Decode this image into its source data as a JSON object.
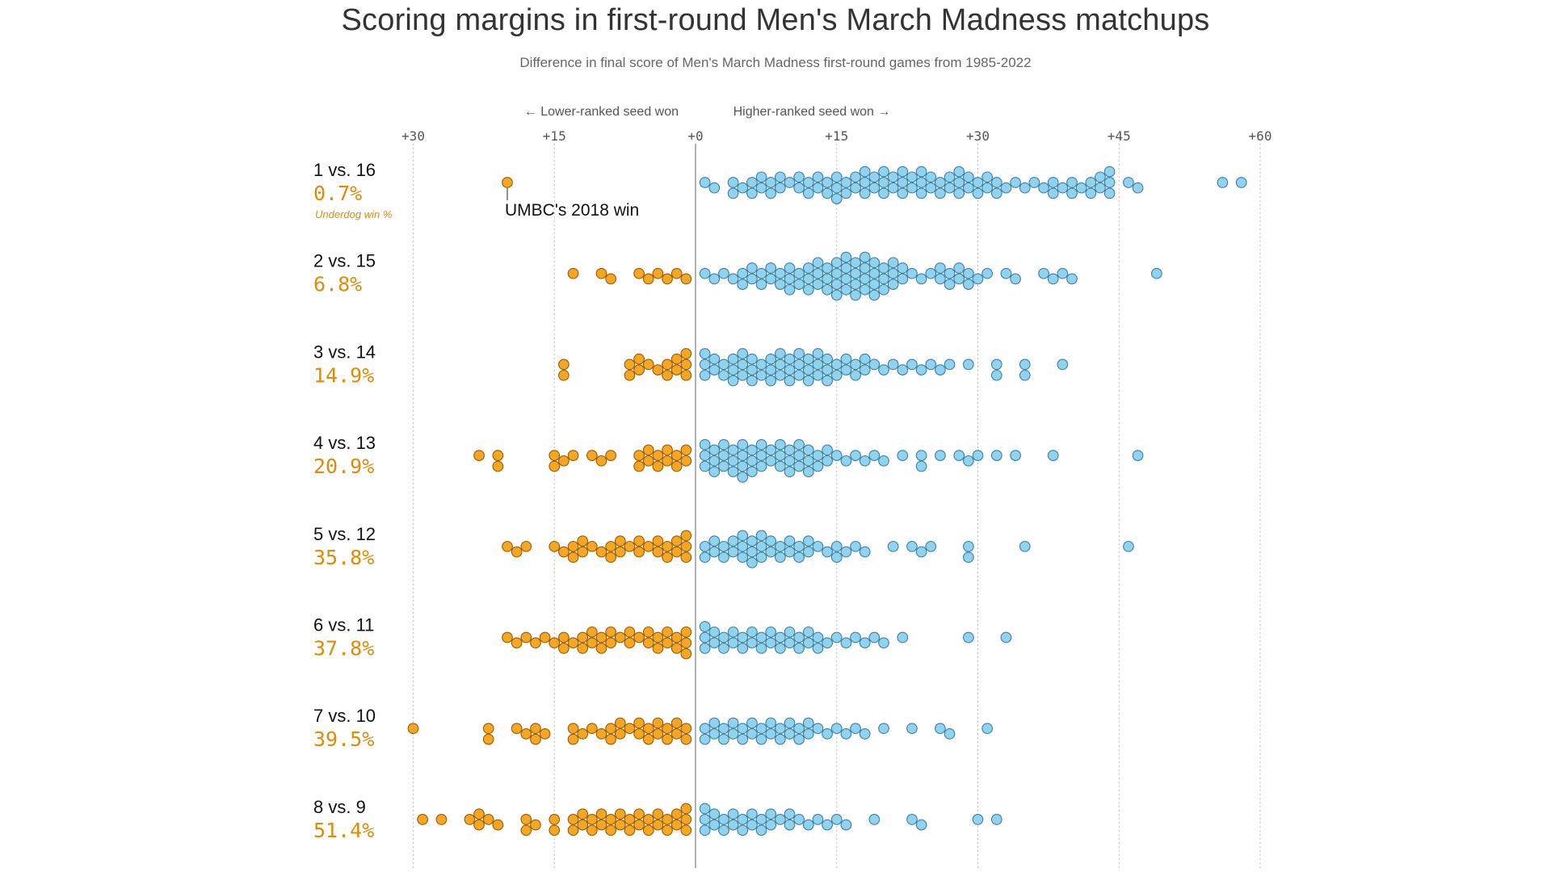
{
  "chart_data": {
    "type": "scatter",
    "subtype": "beeswarm",
    "title": "Scoring margins in first-round Men's March Madness matchups",
    "subtitle": "Difference in final score of Men's March Madness first-round games from 1985-2022",
    "direction_labels": {
      "left": "← Lower-ranked seed won",
      "right": "Higher-ranked seed won →"
    },
    "x_ticks": [
      {
        "value": -30,
        "label": "+30"
      },
      {
        "value": -15,
        "label": "+15"
      },
      {
        "value": 0,
        "label": "+0"
      },
      {
        "value": 15,
        "label": "+15"
      },
      {
        "value": 30,
        "label": "+30"
      },
      {
        "value": 45,
        "label": "+45"
      },
      {
        "value": 60,
        "label": "+60"
      }
    ],
    "xlim": [
      -31,
      61
    ],
    "grid": "vertical dotted",
    "colors": {
      "lower_seed_won": "#f5a623",
      "higher_seed_won": "#8fd3f0",
      "underdog_pct": "#e08a0a"
    },
    "footnote_label": "Underdog win %",
    "annotation": {
      "text": "UMBC's 2018 win",
      "matchup": "1 vs. 16",
      "value": -20
    },
    "series": [
      {
        "name": "1 vs. 16",
        "underdog_win_pct": "0.7%",
        "values": [
          -20,
          1,
          2,
          4,
          4,
          5,
          6,
          6,
          7,
          7,
          8,
          8,
          9,
          9,
          10,
          11,
          11,
          12,
          12,
          13,
          13,
          14,
          14,
          15,
          15,
          15,
          16,
          16,
          17,
          17,
          18,
          18,
          18,
          19,
          19,
          20,
          20,
          20,
          21,
          21,
          22,
          22,
          22,
          23,
          23,
          24,
          24,
          24,
          25,
          25,
          26,
          26,
          27,
          27,
          28,
          28,
          28,
          29,
          29,
          30,
          30,
          31,
          31,
          32,
          32,
          33,
          34,
          35,
          36,
          37,
          38,
          38,
          39,
          40,
          40,
          41,
          42,
          42,
          43,
          43,
          44,
          44,
          44,
          46,
          47,
          56,
          58
        ]
      },
      {
        "name": "2 vs. 15",
        "underdog_win_pct": "6.8%",
        "values": [
          -13,
          -10,
          -9,
          -6,
          -5,
          -4,
          -3,
          -2,
          -1,
          1,
          2,
          3,
          4,
          5,
          5,
          6,
          6,
          7,
          7,
          8,
          8,
          9,
          9,
          10,
          10,
          10,
          11,
          11,
          12,
          12,
          12,
          13,
          13,
          13,
          14,
          14,
          14,
          15,
          15,
          15,
          15,
          16,
          16,
          16,
          16,
          17,
          17,
          17,
          17,
          18,
          18,
          18,
          18,
          19,
          19,
          19,
          19,
          20,
          20,
          20,
          21,
          21,
          21,
          22,
          22,
          23,
          24,
          25,
          26,
          26,
          27,
          27,
          28,
          28,
          29,
          29,
          30,
          31,
          33,
          34,
          37,
          38,
          39,
          40,
          49
        ]
      },
      {
        "name": "3 vs. 14",
        "underdog_win_pct": "14.9%",
        "values": [
          -14,
          -14,
          -7,
          -7,
          -6,
          -6,
          -5,
          -4,
          -3,
          -3,
          -2,
          -2,
          -1,
          -1,
          -1,
          1,
          1,
          1,
          2,
          2,
          3,
          3,
          4,
          4,
          4,
          5,
          5,
          5,
          6,
          6,
          6,
          7,
          7,
          8,
          8,
          8,
          9,
          9,
          9,
          10,
          10,
          10,
          11,
          11,
          11,
          12,
          12,
          12,
          13,
          13,
          13,
          14,
          14,
          14,
          15,
          15,
          16,
          16,
          17,
          17,
          18,
          18,
          19,
          20,
          21,
          22,
          23,
          24,
          25,
          26,
          27,
          29,
          32,
          32,
          35,
          35,
          39
        ]
      },
      {
        "name": "4 vs. 13",
        "underdog_win_pct": "20.9%",
        "values": [
          -23,
          -21,
          -21,
          -15,
          -15,
          -14,
          -13,
          -11,
          -10,
          -9,
          -6,
          -6,
          -5,
          -5,
          -4,
          -4,
          -3,
          -3,
          -2,
          -2,
          -1,
          -1,
          1,
          1,
          1,
          2,
          2,
          2,
          3,
          3,
          3,
          4,
          4,
          4,
          5,
          5,
          5,
          5,
          6,
          6,
          6,
          7,
          7,
          7,
          8,
          8,
          9,
          9,
          9,
          10,
          10,
          10,
          11,
          11,
          11,
          12,
          12,
          12,
          13,
          13,
          14,
          14,
          15,
          16,
          17,
          18,
          19,
          20,
          22,
          24,
          24,
          26,
          28,
          29,
          30,
          32,
          34,
          38,
          47
        ]
      },
      {
        "name": "5 vs. 12",
        "underdog_win_pct": "35.8%",
        "values": [
          -20,
          -19,
          -18,
          -15,
          -14,
          -13,
          -13,
          -12,
          -12,
          -11,
          -10,
          -9,
          -9,
          -8,
          -8,
          -7,
          -6,
          -6,
          -5,
          -4,
          -4,
          -3,
          -3,
          -2,
          -2,
          -1,
          -1,
          -1,
          1,
          1,
          2,
          2,
          3,
          3,
          4,
          4,
          5,
          5,
          5,
          6,
          6,
          6,
          7,
          7,
          7,
          8,
          8,
          9,
          9,
          10,
          10,
          11,
          11,
          12,
          12,
          13,
          14,
          15,
          15,
          16,
          17,
          18,
          21,
          23,
          24,
          25,
          29,
          29,
          35,
          46
        ]
      },
      {
        "name": "6 vs. 11",
        "underdog_win_pct": "37.8%",
        "values": [
          -20,
          -19,
          -18,
          -17,
          -16,
          -15,
          -14,
          -14,
          -13,
          -12,
          -12,
          -11,
          -11,
          -10,
          -10,
          -9,
          -9,
          -8,
          -7,
          -7,
          -6,
          -5,
          -5,
          -4,
          -4,
          -3,
          -3,
          -2,
          -2,
          -1,
          -1,
          -1,
          1,
          1,
          1,
          2,
          2,
          3,
          3,
          4,
          4,
          5,
          5,
          6,
          6,
          7,
          7,
          8,
          8,
          9,
          9,
          10,
          10,
          11,
          11,
          12,
          12,
          13,
          13,
          14,
          15,
          16,
          17,
          18,
          19,
          20,
          22,
          29,
          33
        ]
      },
      {
        "name": "7 vs. 10",
        "underdog_win_pct": "39.5%",
        "values": [
          -30,
          -22,
          -22,
          -19,
          -18,
          -17,
          -17,
          -16,
          -13,
          -13,
          -12,
          -11,
          -10,
          -9,
          -9,
          -8,
          -8,
          -7,
          -6,
          -6,
          -5,
          -5,
          -4,
          -4,
          -3,
          -3,
          -2,
          -2,
          -1,
          -1,
          1,
          1,
          2,
          2,
          3,
          3,
          4,
          4,
          5,
          5,
          6,
          6,
          7,
          7,
          8,
          8,
          9,
          9,
          10,
          10,
          11,
          11,
          12,
          12,
          13,
          14,
          15,
          16,
          17,
          18,
          20,
          23,
          26,
          27,
          31
        ]
      },
      {
        "name": "8 vs. 9",
        "underdog_win_pct": "51.4%",
        "values": [
          -29,
          -27,
          -24,
          -23,
          -23,
          -22,
          -21,
          -18,
          -18,
          -17,
          -15,
          -15,
          -13,
          -13,
          -12,
          -12,
          -11,
          -11,
          -10,
          -10,
          -9,
          -9,
          -8,
          -8,
          -7,
          -7,
          -6,
          -6,
          -5,
          -5,
          -4,
          -4,
          -3,
          -3,
          -2,
          -2,
          -1,
          -1,
          -1,
          1,
          1,
          1,
          2,
          2,
          3,
          3,
          4,
          4,
          5,
          5,
          6,
          6,
          7,
          7,
          8,
          8,
          9,
          10,
          10,
          11,
          12,
          13,
          14,
          15,
          16,
          19,
          23,
          24,
          30,
          32
        ]
      }
    ]
  }
}
